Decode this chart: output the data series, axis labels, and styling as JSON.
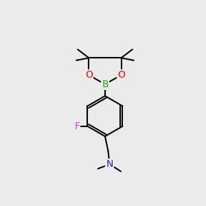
{
  "bg_color": "#ebebeb",
  "bond_color": "#000000",
  "bond_width": 1.5,
  "atom_colors": {
    "B": "#00bb00",
    "O": "#ff0000",
    "F": "#cc44bb",
    "N": "#2222cc",
    "C": "#000000"
  },
  "font_size_atoms": 10,
  "font_size_methyl": 8.5,
  "fig_size": [
    3.0,
    3.0
  ],
  "dpi": 100
}
